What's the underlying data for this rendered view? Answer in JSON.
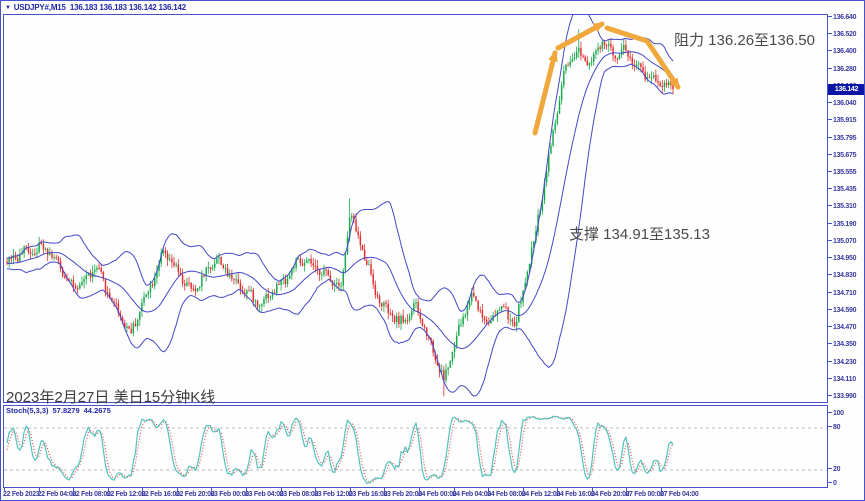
{
  "window": {
    "title_symbol": "USDJPY#,M15",
    "title_quotes": "136.183 136.183 136.142 136.142"
  },
  "icons": {
    "symbol_dropdown": "▼"
  },
  "annotations": {
    "resistance": "阻力 136.26至136.50",
    "support": "支撑 134.91至135.13",
    "date_note": "2023年2月27日 美日15分钟K线"
  },
  "price_axis": {
    "current": "136.142",
    "ticks": [
      "136.640",
      "136.520",
      "136.400",
      "136.280",
      "136.160",
      "136.040",
      "135.915",
      "135.795",
      "135.675",
      "135.555",
      "135.435",
      "135.310",
      "135.190",
      "135.070",
      "134.950",
      "134.830",
      "134.710",
      "134.590",
      "134.470",
      "134.350",
      "134.230",
      "134.110",
      "133.990"
    ]
  },
  "time_axis": [
    "22 Feb 2023",
    "22 Feb 04:00",
    "22 Feb 08:00",
    "22 Feb 12:00",
    "22 Feb 16:00",
    "22 Feb 20:00",
    "23 Feb 00:00",
    "23 Feb 04:00",
    "23 Feb 08:00",
    "23 Feb 12:00",
    "23 Feb 16:00",
    "23 Feb 20:00",
    "24 Feb 00:00",
    "24 Feb 04:00",
    "24 Feb 08:00",
    "24 Feb 12:00",
    "24 Feb 16:00",
    "24 Feb 20:00",
    "27 Feb 00:00",
    "27 Feb 04:00"
  ],
  "indicator": {
    "label": "Stoch(5,3,3)",
    "value_main": "57.8279",
    "value_signal": "44.2675",
    "axis": [
      {
        "t": "100",
        "v": 100
      },
      {
        "t": "80",
        "v": 80
      },
      {
        "t": "20",
        "v": 20
      },
      {
        "t": "0",
        "v": 0
      }
    ],
    "levels": [
      80,
      20
    ]
  },
  "colors": {
    "frame": "#4653cb",
    "band": "#4348c8",
    "bull": "#18a94c",
    "bear": "#df3030",
    "stoch_main": "#4fc3bc",
    "stoch_signal": "#e05050",
    "level_line": "#b0b0b0",
    "axis_text": "#3a3aa0",
    "arrow": "#f0a73c",
    "price_tag_bg": "#0b16a6"
  },
  "chart_data": {
    "type": "candlestick",
    "symbol": "USDJPY#",
    "timeframe": "M15",
    "title_ohlc": [
      136.183,
      136.183,
      136.142,
      136.142
    ],
    "last_price": 136.142,
    "price_range": [
      133.99,
      136.64
    ],
    "visible_bars": 312,
    "price_path_anchors": [
      [
        0.0,
        134.93
      ],
      [
        0.059,
        135.06
      ],
      [
        0.104,
        134.72
      ],
      [
        0.134,
        134.9
      ],
      [
        0.186,
        134.42
      ],
      [
        0.236,
        135.02
      ],
      [
        0.279,
        134.7
      ],
      [
        0.314,
        134.97
      ],
      [
        0.378,
        134.62
      ],
      [
        0.438,
        134.94
      ],
      [
        0.502,
        134.78
      ],
      [
        0.515,
        135.28
      ],
      [
        0.528,
        135.1
      ],
      [
        0.559,
        134.64
      ],
      [
        0.589,
        134.52
      ],
      [
        0.614,
        134.62
      ],
      [
        0.64,
        134.3
      ],
      [
        0.656,
        134.1
      ],
      [
        0.677,
        134.45
      ],
      [
        0.697,
        134.72
      ],
      [
        0.722,
        134.48
      ],
      [
        0.742,
        134.62
      ],
      [
        0.763,
        134.5
      ],
      [
        0.79,
        135.05
      ],
      [
        0.806,
        135.45
      ],
      [
        0.821,
        135.85
      ],
      [
        0.838,
        136.28
      ],
      [
        0.857,
        136.42
      ],
      [
        0.877,
        136.34
      ],
      [
        0.895,
        136.46
      ],
      [
        0.91,
        136.37
      ],
      [
        0.928,
        136.43
      ],
      [
        0.947,
        136.3
      ],
      [
        0.968,
        136.22
      ],
      [
        0.986,
        136.17
      ],
      [
        1.0,
        136.142
      ]
    ],
    "special_wicks": [
      {
        "f": 0.656,
        "low": 133.995
      },
      {
        "f": 0.515,
        "high": 135.38
      },
      {
        "f": 0.86,
        "high": 136.56
      }
    ],
    "overlays": {
      "bollinger": {
        "period": 20,
        "deviation": 2
      }
    },
    "indicator_pane": {
      "name": "Stochastic",
      "k": 5,
      "d": 3,
      "slowing": 3,
      "values": [
        57.8279,
        44.2675
      ],
      "levels": [
        20,
        80
      ],
      "range": [
        0,
        100
      ]
    },
    "zones": {
      "resistance": [
        136.26,
        136.5
      ],
      "support": [
        134.91,
        135.13
      ]
    },
    "trend_arrows": [
      {
        "points": [
          [
            534,
            132
          ],
          [
            554,
            52
          ]
        ]
      },
      {
        "points": [
          [
            557,
            47
          ],
          [
            601,
            23
          ]
        ]
      },
      {
        "points": [
          [
            606,
            27
          ],
          [
            646,
            40
          ],
          [
            677,
            86
          ]
        ]
      }
    ]
  }
}
